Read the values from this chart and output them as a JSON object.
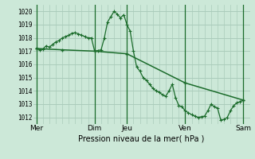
{
  "title": "Pression niveau de la mer( hPa )",
  "bg_color": "#cce8d8",
  "grid_color": "#aaccbb",
  "line_color": "#1a6b2a",
  "ylim": [
    1011.5,
    1020.5
  ],
  "yticks": [
    1012,
    1013,
    1014,
    1015,
    1016,
    1017,
    1018,
    1019,
    1020
  ],
  "day_labels": [
    "Mer",
    "Dim",
    "Jeu",
    "Ven",
    "Sam"
  ],
  "day_positions": [
    0,
    9,
    14,
    23,
    32
  ],
  "vline_positions": [
    0,
    9,
    14,
    23,
    32
  ],
  "xlim": [
    -0.5,
    33
  ],
  "series1_x": [
    0,
    0.5,
    1,
    1.5,
    2,
    2.5,
    3,
    3.5,
    4,
    4.5,
    5,
    5.5,
    6,
    6.5,
    7,
    7.5,
    8,
    8.5,
    9,
    9.5,
    10,
    10.5,
    11,
    11.5,
    12,
    12.5,
    13,
    13.5,
    14,
    14.5,
    15,
    15.5,
    16,
    16.5,
    17,
    17.5,
    18,
    18.5,
    19,
    19.5,
    20,
    20.5,
    21,
    21.5,
    22,
    22.5,
    23,
    23.5,
    24,
    24.5,
    25,
    25.5,
    26,
    26.5,
    27,
    27.5,
    28,
    28.5,
    29,
    29.5,
    30,
    30.5,
    31,
    31.5,
    32
  ],
  "series1_y": [
    1017.2,
    1017.1,
    1017.15,
    1017.4,
    1017.3,
    1017.5,
    1017.7,
    1017.8,
    1018.0,
    1018.1,
    1018.2,
    1018.35,
    1018.4,
    1018.3,
    1018.2,
    1018.1,
    1018.0,
    1018.0,
    1017.0,
    1017.05,
    1017.1,
    1018.0,
    1019.2,
    1019.6,
    1020.0,
    1019.8,
    1019.5,
    1019.75,
    1019.0,
    1018.5,
    1017.0,
    1015.8,
    1015.5,
    1015.0,
    1014.8,
    1014.5,
    1014.2,
    1014.0,
    1013.9,
    1013.7,
    1013.6,
    1014.0,
    1014.5,
    1013.5,
    1012.9,
    1012.8,
    1012.5,
    1012.35,
    1012.2,
    1012.1,
    1012.0,
    1012.05,
    1012.1,
    1012.5,
    1013.0,
    1012.8,
    1012.7,
    1011.8,
    1011.85,
    1012.0,
    1012.5,
    1012.9,
    1013.1,
    1013.2,
    1013.3
  ],
  "series2_x": [
    0,
    4,
    9,
    14,
    23,
    32
  ],
  "series2_y": [
    1017.2,
    1017.1,
    1017.0,
    1016.8,
    1014.6,
    1013.3
  ]
}
